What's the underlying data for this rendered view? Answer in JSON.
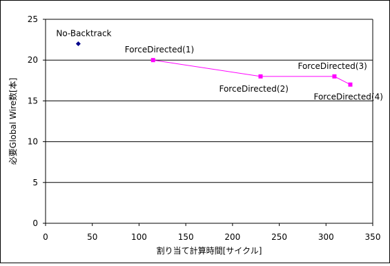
{
  "chart_data": {
    "type": "scatter",
    "xlabel": "割り当て計算時間[サイクル]",
    "ylabel": "必要Global Wire数[本]",
    "xlim": [
      0,
      350
    ],
    "ylim": [
      0,
      25
    ],
    "x_ticks": [
      0,
      50,
      100,
      150,
      200,
      250,
      300,
      350
    ],
    "y_ticks": [
      0,
      5,
      10,
      15,
      20,
      25
    ],
    "grid": "horizontal",
    "series": [
      {
        "color": "#00008b",
        "marker": "diamond",
        "connected": false,
        "points": [
          {
            "x": 35,
            "y": 22,
            "label": "No-Backtrack"
          }
        ]
      },
      {
        "color": "#ff00ff",
        "marker": "square",
        "connected": true,
        "points": [
          {
            "x": 115,
            "y": 20,
            "label": "ForceDirected(1)"
          },
          {
            "x": 230,
            "y": 18,
            "label": "ForceDirected(2)"
          },
          {
            "x": 309,
            "y": 18,
            "label": "ForceDirected(3)"
          },
          {
            "x": 326,
            "y": 17,
            "label": "ForceDirected(4)"
          }
        ]
      }
    ]
  }
}
